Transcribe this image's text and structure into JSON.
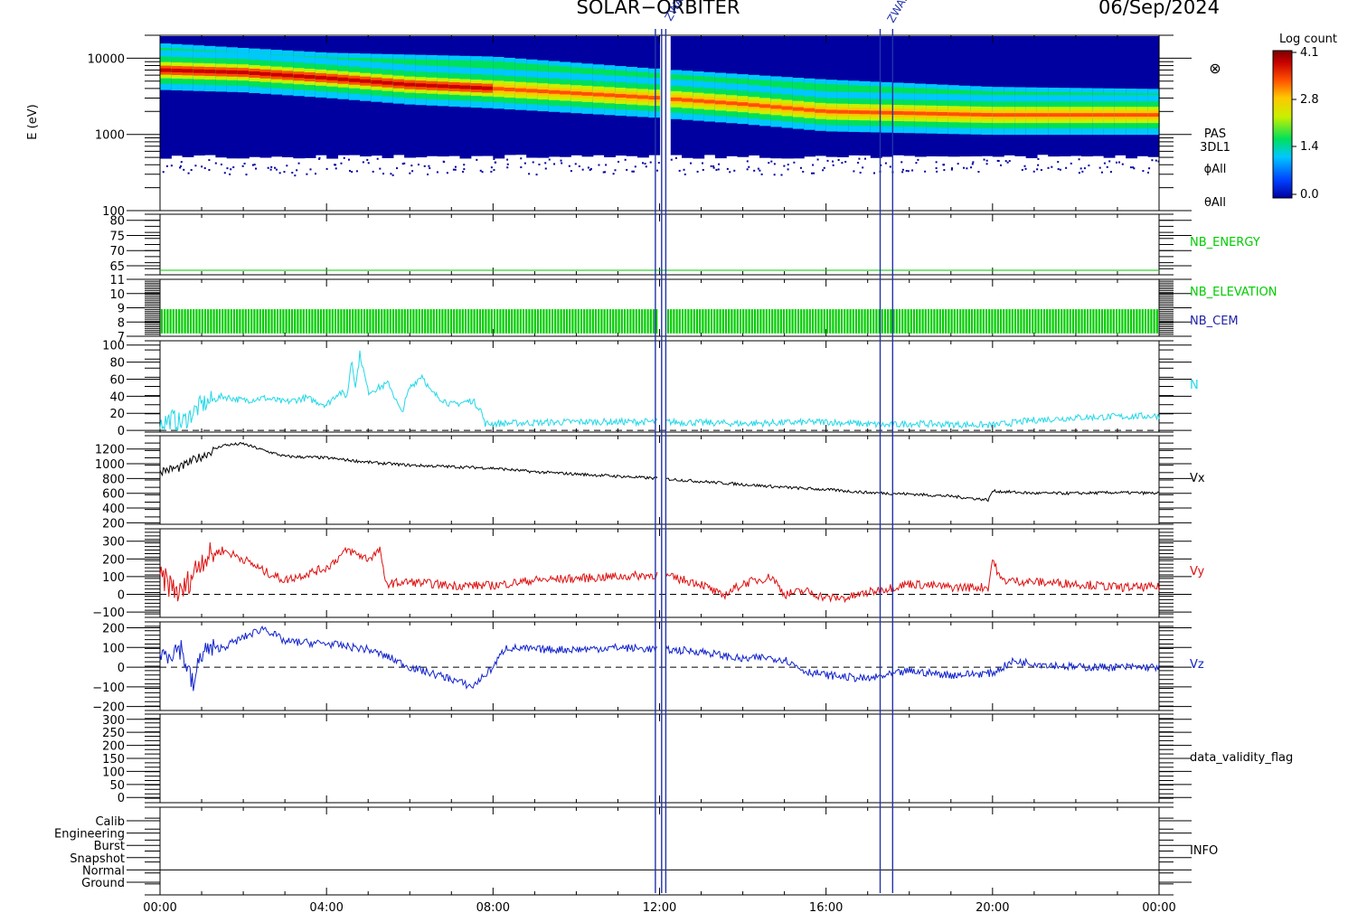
{
  "header": {
    "mission": "SOLAR−ORBITER",
    "date": "06/Sep/2024"
  },
  "time_axis": {
    "ticks": [
      "00:00",
      "04:00",
      "08:00",
      "12:00",
      "16:00",
      "20:00",
      "00:00"
    ]
  },
  "colorbar": {
    "title": "Log count",
    "ticks": [
      "4.1",
      "2.8",
      "1.4",
      "0.0"
    ],
    "colors": [
      "#0000a0",
      "#0040ff",
      "#00c8ff",
      "#00e05a",
      "#c8f000",
      "#ffc800",
      "#ff5000",
      "#c80000",
      "#780000"
    ]
  },
  "side_labels": {
    "direction_symbol": "⊗",
    "pas": "PAS",
    "product": "3DL1",
    "phi": "ϕAll",
    "theta": "θAll"
  },
  "colors": {
    "frame": "#000000",
    "nb": "#00cc00",
    "nb_cem": "#2222aa",
    "density": "#22d8e8",
    "vx": "#000000",
    "vy": "#dd1111",
    "vz": "#1122cc",
    "event": "#2233aa"
  },
  "panels": {
    "spectrogram": {
      "ylabel": "E (eV)",
      "yticks": [
        "10000",
        "1000",
        "100"
      ]
    },
    "nb_energy": {
      "label": "NB_ENERGY",
      "yticks": [
        "80",
        "75",
        "70",
        "65"
      ]
    },
    "nb_elevation": {
      "label": "NB_ELEVATION",
      "label2": "NB_CEM",
      "yticks": [
        "11",
        "10",
        "9",
        "8",
        "7"
      ]
    },
    "density": {
      "label": "N",
      "yticks": [
        "100",
        "80",
        "60",
        "40",
        "20",
        "0"
      ]
    },
    "vx": {
      "label": "Vx",
      "yticks": [
        "1200",
        "1000",
        "800",
        "600",
        "400",
        "200"
      ]
    },
    "vy": {
      "label": "Vy",
      "yticks": [
        "300",
        "200",
        "100",
        "0",
        "−100"
      ]
    },
    "vz": {
      "label": "Vz",
      "yticks": [
        "200",
        "100",
        "0",
        "−100",
        "−200"
      ]
    },
    "validity": {
      "label": "data_validity_flag",
      "yticks": [
        "300",
        "250",
        "200",
        "150",
        "100",
        "50",
        "0"
      ]
    },
    "info": {
      "label": "INFO",
      "yticks": [
        "Calib",
        "Engineering",
        "Burst",
        "Snapshot",
        "Normal",
        "Ground"
      ]
    }
  },
  "events": {
    "labels": [
      "ZWAB",
      "ZWAB"
    ]
  },
  "chart_data": {
    "type": "line",
    "x_unit": "hours UT",
    "xlim": [
      0,
      24
    ],
    "spectrogram": {
      "ylim": [
        100,
        20000
      ],
      "log_y": true,
      "energy_band_main_eV": [
        [
          0,
          7000
        ],
        [
          2,
          6500
        ],
        [
          4,
          5500
        ],
        [
          6,
          4500
        ],
        [
          8,
          4000
        ],
        [
          12,
          3000
        ],
        [
          14,
          2500
        ],
        [
          16,
          2000
        ],
        [
          20,
          1800
        ],
        [
          24,
          1800
        ]
      ],
      "energy_band_upper_eV": [
        [
          0,
          12000
        ],
        [
          4,
          9000
        ],
        [
          8,
          8000
        ],
        [
          12,
          5500
        ],
        [
          16,
          4000
        ],
        [
          20,
          3200
        ],
        [
          24,
          3000
        ]
      ],
      "data_gap_hours": [
        [
          11.95,
          12.15
        ]
      ]
    },
    "nb_energy": {
      "ylim": [
        62,
        82
      ],
      "value": 63.5
    },
    "nb_elevation": {
      "ylim": [
        7,
        11
      ],
      "range": [
        7.2,
        8.9
      ]
    },
    "density": {
      "ylim": [
        -2,
        105
      ],
      "points": [
        [
          0,
          8
        ],
        [
          0.3,
          14
        ],
        [
          0.5,
          8
        ],
        [
          1,
          30
        ],
        [
          1.5,
          40
        ],
        [
          2,
          35
        ],
        [
          2.5,
          38
        ],
        [
          3,
          33
        ],
        [
          3.5,
          38
        ],
        [
          4,
          30
        ],
        [
          4.3,
          45
        ],
        [
          4.5,
          40
        ],
        [
          4.6,
          85
        ],
        [
          4.7,
          50
        ],
        [
          4.8,
          90
        ],
        [
          5,
          45
        ],
        [
          5.5,
          55
        ],
        [
          5.8,
          20
        ],
        [
          6,
          50
        ],
        [
          6.3,
          65
        ],
        [
          6.5,
          45
        ],
        [
          7,
          30
        ],
        [
          7.5,
          35
        ],
        [
          7.7,
          25
        ],
        [
          7.8,
          8
        ],
        [
          8,
          8
        ],
        [
          10,
          10
        ],
        [
          12,
          10
        ],
        [
          14,
          8
        ],
        [
          16,
          10
        ],
        [
          17.5,
          6
        ],
        [
          18,
          8
        ],
        [
          20,
          6
        ],
        [
          21,
          12
        ],
        [
          22,
          15
        ],
        [
          24,
          17
        ]
      ]
    },
    "vx": {
      "ylim": [
        180,
        1380
      ],
      "points": [
        [
          0,
          900
        ],
        [
          0.5,
          950
        ],
        [
          0.8,
          1050
        ],
        [
          1,
          1100
        ],
        [
          1.5,
          1250
        ],
        [
          2,
          1270
        ],
        [
          2.5,
          1180
        ],
        [
          3,
          1100
        ],
        [
          4,
          1080
        ],
        [
          5,
          1020
        ],
        [
          6,
          980
        ],
        [
          7,
          960
        ],
        [
          8,
          940
        ],
        [
          9,
          890
        ],
        [
          10,
          860
        ],
        [
          11,
          830
        ],
        [
          12,
          800
        ],
        [
          13,
          760
        ],
        [
          14,
          720
        ],
        [
          15,
          680
        ],
        [
          16,
          650
        ],
        [
          17,
          610
        ],
        [
          18,
          590
        ],
        [
          19,
          560
        ],
        [
          19.9,
          510
        ],
        [
          20,
          630
        ],
        [
          21,
          600
        ],
        [
          22,
          600
        ],
        [
          23,
          610
        ],
        [
          24,
          600
        ]
      ]
    },
    "vy": {
      "ylim": [
        -130,
        370
      ],
      "points": [
        [
          0,
          100
        ],
        [
          0.5,
          0
        ],
        [
          1,
          200
        ],
        [
          1.5,
          250
        ],
        [
          2,
          200
        ],
        [
          2.5,
          130
        ],
        [
          3,
          80
        ],
        [
          4,
          150
        ],
        [
          4.5,
          250
        ],
        [
          5,
          200
        ],
        [
          5.3,
          250
        ],
        [
          5.4,
          60
        ],
        [
          6,
          70
        ],
        [
          7,
          50
        ],
        [
          8,
          50
        ],
        [
          9,
          80
        ],
        [
          10,
          90
        ],
        [
          11,
          100
        ],
        [
          12,
          110
        ],
        [
          13,
          60
        ],
        [
          13.5,
          -10
        ],
        [
          14,
          60
        ],
        [
          14.7,
          100
        ],
        [
          15,
          0
        ],
        [
          15.5,
          20
        ],
        [
          16,
          -20
        ],
        [
          16.5,
          -20
        ],
        [
          17,
          10
        ],
        [
          18,
          60
        ],
        [
          19,
          40
        ],
        [
          19.9,
          40
        ],
        [
          20,
          200
        ],
        [
          20.2,
          80
        ],
        [
          21,
          70
        ],
        [
          22,
          60
        ],
        [
          23,
          40
        ],
        [
          24,
          40
        ]
      ]
    },
    "vz": {
      "ylim": [
        -220,
        230
      ],
      "points": [
        [
          0,
          60
        ],
        [
          0.5,
          100
        ],
        [
          0.8,
          -100
        ],
        [
          1,
          80
        ],
        [
          1.5,
          100
        ],
        [
          2,
          150
        ],
        [
          2.5,
          200
        ],
        [
          3,
          130
        ],
        [
          4,
          120
        ],
        [
          5,
          90
        ],
        [
          5.5,
          50
        ],
        [
          6,
          0
        ],
        [
          7,
          -60
        ],
        [
          7.5,
          -100
        ],
        [
          8,
          0
        ],
        [
          8.3,
          100
        ],
        [
          9,
          90
        ],
        [
          10,
          90
        ],
        [
          11,
          100
        ],
        [
          12,
          90
        ],
        [
          13,
          80
        ],
        [
          13.5,
          60
        ],
        [
          14,
          40
        ],
        [
          14.5,
          50
        ],
        [
          15,
          40
        ],
        [
          15.5,
          -20
        ],
        [
          16,
          -40
        ],
        [
          17,
          -60
        ],
        [
          17.5,
          -40
        ],
        [
          18,
          -20
        ],
        [
          19,
          -40
        ],
        [
          20,
          -30
        ],
        [
          20.5,
          30
        ],
        [
          21,
          20
        ],
        [
          22,
          0
        ],
        [
          23,
          0
        ],
        [
          24,
          0
        ]
      ]
    },
    "info": {
      "active_mode": "Normal"
    },
    "event_markers_hours": [
      11.9,
      12.05,
      12.15,
      17.3,
      17.6
    ]
  }
}
